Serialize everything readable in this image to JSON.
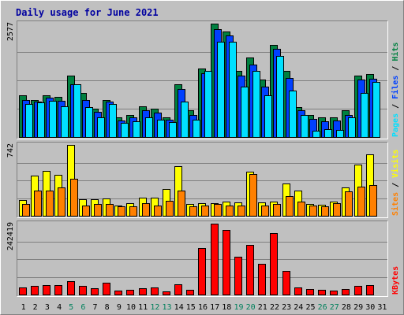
{
  "chart_data": {
    "type": "bar",
    "title": "Daily usage for June 2021",
    "days": [
      "1",
      "2",
      "3",
      "4",
      "5",
      "6",
      "7",
      "8",
      "9",
      "10",
      "11",
      "12",
      "13",
      "14",
      "15",
      "16",
      "17",
      "18",
      "19",
      "20",
      "21",
      "22",
      "23",
      "24",
      "25",
      "26",
      "27",
      "28",
      "29",
      "30",
      "31"
    ],
    "weekend_days": [
      "5",
      "6",
      "12",
      "13",
      "19",
      "20",
      "26",
      "27"
    ],
    "colors": {
      "hits": "#008040",
      "files": "#0040ff",
      "pages": "#00e0ff",
      "visits": "#ffff00",
      "sites": "#ff8000",
      "kbytes": "#ff0000",
      "weekday_label": "#000000",
      "weekend_label": "#00805c"
    },
    "panels": [
      {
        "id": "hits-files-pages",
        "ymax_label": "2577",
        "ymax": 2577,
        "right_label": [
          {
            "text": "Pages",
            "color": "#00e0ff"
          },
          {
            "text": " / ",
            "color": "#000000"
          },
          {
            "text": "Files",
            "color": "#0040ff"
          },
          {
            "text": " / ",
            "color": "#000000"
          },
          {
            "text": "Hits",
            "color": "#008040"
          }
        ],
        "series": [
          {
            "key": "hits",
            "values": [
              950,
              850,
              950,
              920,
              1400,
              1000,
              650,
              850,
              450,
              500,
              700,
              650,
              450,
              1200,
              600,
              1550,
              2577,
              2400,
              1500,
              1800,
              1300,
              2100,
              1500,
              680,
              500,
              450,
              450,
              600,
              1400,
              1430,
              0
            ]
          },
          {
            "key": "files",
            "values": [
              850,
              800,
              900,
              820,
              1200,
              850,
              580,
              800,
              380,
              440,
              600,
              550,
              400,
              1100,
              500,
              1450,
              2450,
              2300,
              1400,
              1650,
              1150,
              2000,
              1350,
              600,
              420,
              350,
              370,
              500,
              1300,
              1330,
              0
            ]
          },
          {
            "key": "pages",
            "values": [
              760,
              780,
              820,
              700,
              1200,
              680,
              440,
              750,
              330,
              350,
              450,
              400,
              340,
              800,
              400,
              1500,
              2160,
              2160,
              1150,
              1500,
              950,
              1840,
              1050,
              500,
              150,
              180,
              160,
              450,
              1000,
              1250,
              0
            ]
          }
        ]
      },
      {
        "id": "visits-sites",
        "ymax_label": "742",
        "ymax": 742,
        "right_label": [
          {
            "text": "Sites",
            "color": "#ff8000"
          },
          {
            "text": " / ",
            "color": "#000000"
          },
          {
            "text": "Visits",
            "color": "#ffff00"
          }
        ],
        "series": [
          {
            "key": "visits",
            "values": [
              165,
              420,
              470,
              430,
              742,
              170,
              170,
              180,
              110,
              130,
              190,
              190,
              280,
              520,
              120,
              130,
              130,
              150,
              140,
              460,
              140,
              150,
              340,
              260,
              120,
              115,
              145,
              300,
              540,
              640,
              0
            ]
          },
          {
            "key": "sites",
            "values": [
              120,
              260,
              260,
              300,
              390,
              110,
              120,
              120,
              100,
              100,
              130,
              110,
              160,
              260,
              100,
              110,
              120,
              110,
              110,
              440,
              110,
              125,
              210,
              150,
              105,
              100,
              130,
              255,
              305,
              320,
              0
            ]
          }
        ]
      },
      {
        "id": "kbytes",
        "ymax_label": "242419",
        "ymax": 242419,
        "right_label": [
          {
            "text": "KBytes",
            "color": "#ff0000"
          }
        ],
        "series": [
          {
            "key": "kbytes",
            "values": [
              25000,
              30000,
              33000,
              33000,
              45000,
              30000,
              22000,
              40000,
              14000,
              16000,
              22000,
              24000,
              12000,
              36000,
              15000,
              160000,
              242419,
              220000,
              130000,
              170000,
              105000,
              210000,
              80000,
              25000,
              20000,
              16000,
              14000,
              18000,
              30000,
              32000,
              0
            ]
          }
        ]
      }
    ]
  }
}
